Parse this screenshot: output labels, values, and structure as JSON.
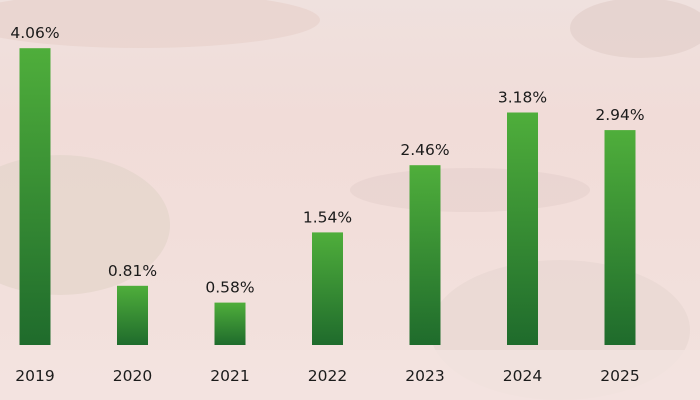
{
  "colors": {
    "bar_top": "#4fae3b",
    "bar_bottom": "#1f6b2c",
    "background": "#f4e1dd"
  },
  "chart_data": {
    "type": "bar",
    "categories": [
      "2019",
      "2020",
      "2021",
      "2022",
      "2023",
      "2024",
      "2025"
    ],
    "values": [
      4.06,
      0.81,
      0.58,
      1.54,
      2.46,
      3.18,
      2.94
    ],
    "value_labels": [
      "4.06%",
      "0.81%",
      "0.58%",
      "1.54%",
      "2.46%",
      "3.18%",
      "2.94%"
    ],
    "title": "",
    "xlabel": "",
    "ylabel": "",
    "ylim": [
      0,
      4.5
    ],
    "grid": false,
    "legend": "none"
  }
}
